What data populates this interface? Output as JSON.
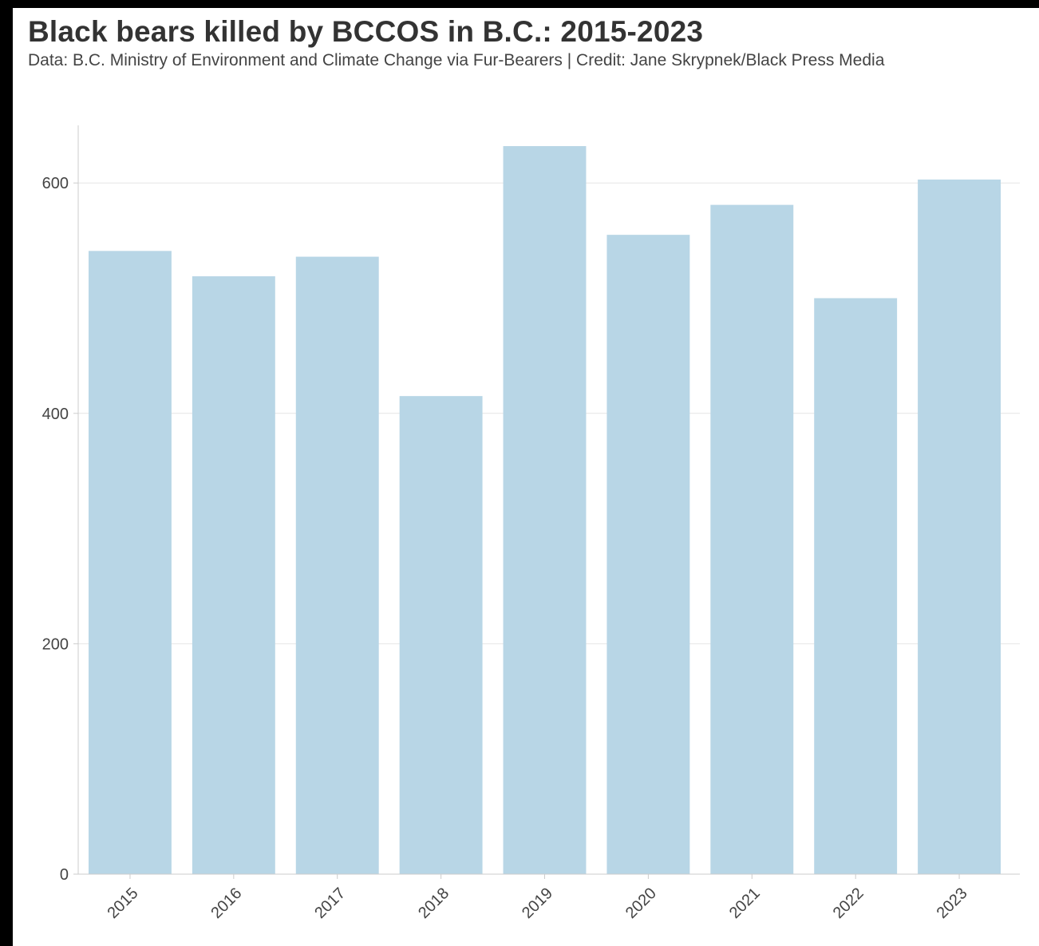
{
  "chart_data": {
    "type": "bar",
    "title": "Black bears killed by BCCOS in B.C.: 2015-2023",
    "subtitle": "Data: B.C. Ministry of Environment and Climate Change via Fur-Bearers | Credit: Jane Skrypnek/Black Press Media",
    "xlabel": "",
    "ylabel": "",
    "categories": [
      "2015",
      "2016",
      "2017",
      "2018",
      "2019",
      "2020",
      "2021",
      "2022",
      "2023"
    ],
    "values": [
      541,
      519,
      536,
      415,
      632,
      555,
      581,
      500,
      603
    ],
    "ylim": [
      0,
      650
    ],
    "yticks": [
      0,
      200,
      400,
      600
    ],
    "grid": true,
    "colors": {
      "bar": "#b8d6e6",
      "grid": "#e6e6e6",
      "axis": "#cccccc"
    }
  }
}
